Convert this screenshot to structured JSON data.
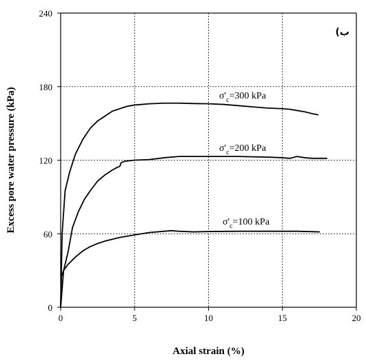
{
  "chart_data": {
    "type": "line",
    "title": "",
    "panel_label": "(ب",
    "xlabel": "Axial strain (%)",
    "ylabel": "Excess pore water pressure (kPa)",
    "xlim": [
      0,
      20
    ],
    "ylim": [
      0,
      240
    ],
    "xticks": [
      0,
      5,
      10,
      15,
      20
    ],
    "yticks": [
      0,
      60,
      120,
      180,
      240
    ],
    "grid": true,
    "series": [
      {
        "name": "σ'c=300 kPa",
        "label_main": "σ'",
        "label_sub": "c",
        "label_rest": "=300 kPa",
        "color": "#000000",
        "x": [
          0,
          0.1,
          0.3,
          0.6,
          1.0,
          1.5,
          2.0,
          2.5,
          3.0,
          3.5,
          4.0,
          4.5,
          5.0,
          5.5,
          6.0,
          7.0,
          8.0,
          9.0,
          10.0,
          11.0,
          12.0,
          13.0,
          14.0,
          15.0,
          15.5,
          16.0,
          16.5,
          17.0,
          17.4
        ],
        "y": [
          0,
          60,
          95,
          110,
          125,
          137,
          146,
          152,
          156,
          160,
          162,
          164,
          165,
          165.5,
          166,
          166.5,
          166.5,
          166.2,
          166,
          165.5,
          164.5,
          163.5,
          162.5,
          162,
          161.5,
          160.5,
          159.5,
          158,
          157
        ]
      },
      {
        "name": "σ'c=200 kPa",
        "label_main": "σ'",
        "label_sub": "c",
        "label_rest": "=200 kPa",
        "color": "#000000",
        "x": [
          0,
          0.2,
          0.5,
          0.8,
          1.2,
          1.6,
          2.0,
          2.5,
          3.0,
          3.5,
          3.8,
          4.0,
          4.1,
          4.3,
          4.6,
          5.0,
          6.0,
          7.0,
          8.0,
          9.0,
          10.0,
          12.0,
          14.0,
          15.0,
          15.5,
          16.0,
          16.5,
          17.0,
          18.0
        ],
        "y": [
          0,
          30,
          45,
          65,
          78,
          88,
          95,
          103,
          108,
          112,
          114,
          115,
          118,
          119,
          119.5,
          120,
          120.5,
          122,
          123,
          123,
          123,
          123,
          122.5,
          122,
          121.5,
          123,
          122,
          121.5,
          121.5
        ]
      },
      {
        "name": "σ'c=100 kPa",
        "label_main": "σ'",
        "label_sub": "c",
        "label_rest": "=100 kPa",
        "color": "#000000",
        "x": [
          0,
          0.05,
          0.2,
          0.5,
          1.0,
          1.5,
          2.0,
          2.5,
          3.0,
          3.5,
          4.0,
          5.0,
          6.0,
          7.0,
          7.5,
          8.0,
          9.0,
          10.0,
          12.0,
          14.0,
          16.0,
          17.5
        ],
        "y": [
          0,
          25,
          30,
          35,
          41,
          46,
          49.5,
          52,
          54,
          55.5,
          57,
          59,
          61,
          62,
          62.5,
          62,
          61.5,
          61.8,
          62,
          62,
          62,
          61.5
        ]
      }
    ]
  }
}
